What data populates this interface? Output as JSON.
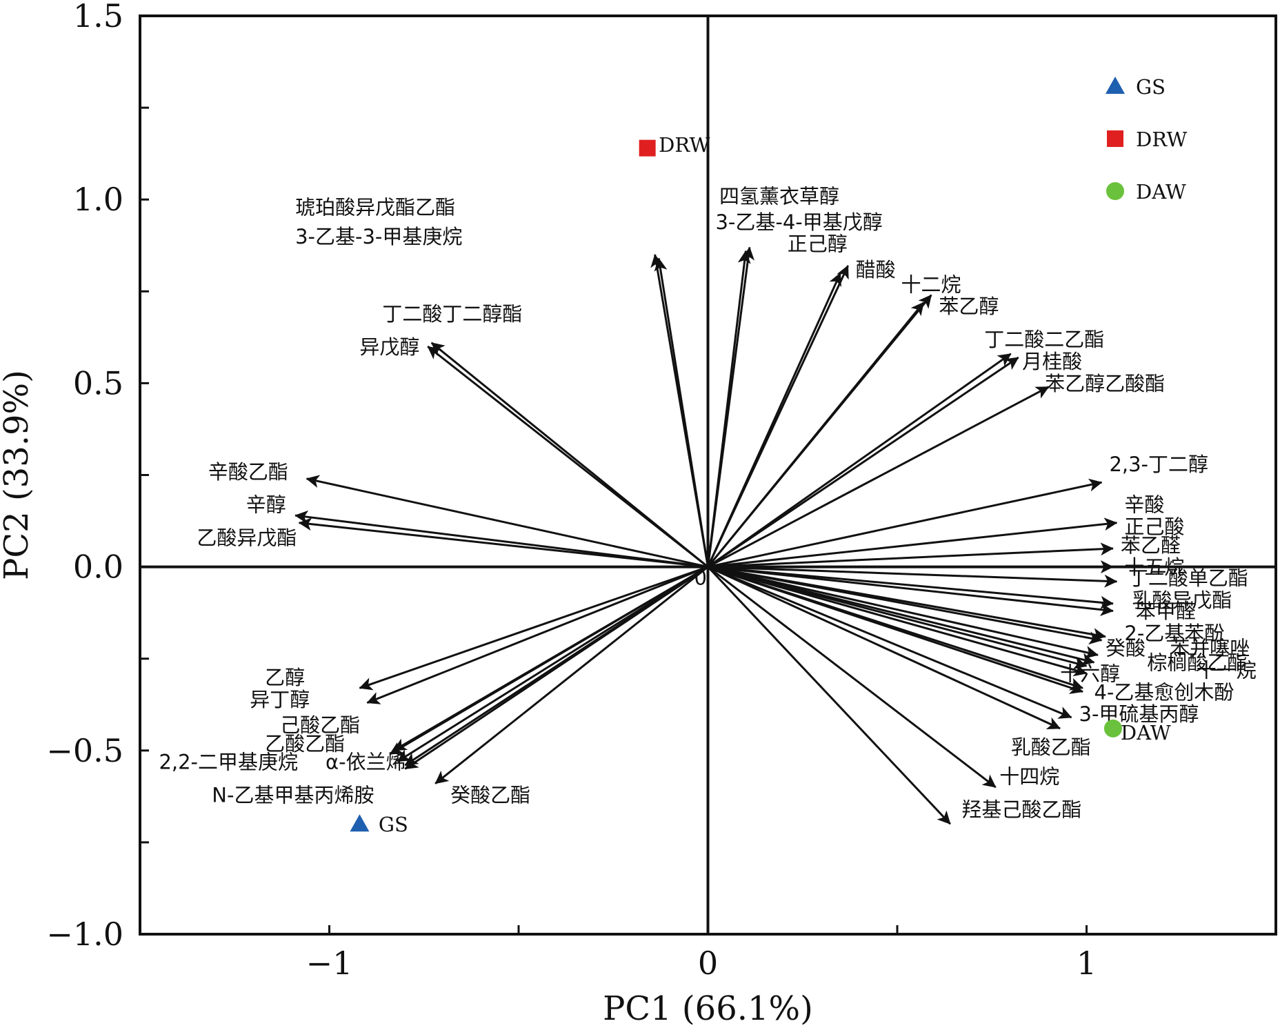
{
  "chart_data": {
    "type": "scatter",
    "subtype": "pca-biplot",
    "xlabel": "PC1 (66.1%)",
    "ylabel": "PC2 (33.9%)",
    "xlim": [
      -1.5,
      1.5
    ],
    "ylim": [
      -1.0,
      1.5
    ],
    "x_ticks": [
      -1,
      0,
      1
    ],
    "x_tick_labels": [
      "−1",
      "0",
      "1"
    ],
    "y_ticks": [
      -1.0,
      -0.5,
      0.0,
      0.5,
      1.0,
      1.5
    ],
    "y_tick_labels": [
      "−1.0",
      "−0.5",
      "0.0",
      "0.5",
      "1.0",
      "1.5"
    ],
    "origin_label": "0",
    "grid": false,
    "legend_position": "top-right",
    "colors": {
      "GS": "#1f5fb0",
      "DRW": "#e02020",
      "DAW": "#6ac23c",
      "arrow": "#111111"
    },
    "samples": [
      {
        "name": "GS",
        "marker": "triangle",
        "x": -0.92,
        "y": -0.7
      },
      {
        "name": "DRW",
        "marker": "square",
        "x": -0.16,
        "y": 1.14
      },
      {
        "name": "DAW",
        "marker": "circle",
        "x": 1.07,
        "y": -0.44
      }
    ],
    "loadings": [
      {
        "name": "琥珀酸异戊酯乙酯",
        "x": -0.14,
        "y": 0.85
      },
      {
        "name": "3-乙基-3-甲基庚烷",
        "x": -0.13,
        "y": 0.84
      },
      {
        "name": "四氢薰衣草醇",
        "x": 0.11,
        "y": 0.87
      },
      {
        "name": "3-乙基-4-甲基戊醇",
        "x": 0.1,
        "y": 0.86
      },
      {
        "name": "正己醇",
        "x": 0.37,
        "y": 0.82
      },
      {
        "name": "醋酸",
        "x": 0.35,
        "y": 0.8
      },
      {
        "name": "十二烷",
        "x": 0.59,
        "y": 0.74
      },
      {
        "name": "苯乙醇",
        "x": 0.57,
        "y": 0.72
      },
      {
        "name": "丁二酸二乙酯",
        "x": 0.8,
        "y": 0.58
      },
      {
        "name": "月桂酸",
        "x": 0.82,
        "y": 0.57
      },
      {
        "name": "苯乙醇乙酸酯",
        "x": 0.9,
        "y": 0.49
      },
      {
        "name": "丁二酸丁二醇酯",
        "x": -0.73,
        "y": 0.61
      },
      {
        "name": "异戊醇",
        "x": -0.74,
        "y": 0.6
      },
      {
        "name": "辛酸乙酯",
        "x": -1.06,
        "y": 0.24
      },
      {
        "name": "辛醇",
        "x": -1.09,
        "y": 0.14
      },
      {
        "name": "乙酸异戊酯",
        "x": -1.08,
        "y": 0.12
      },
      {
        "name": "2,3-丁二醇",
        "x": 1.04,
        "y": 0.23
      },
      {
        "name": "辛酸",
        "x": 1.08,
        "y": 0.12
      },
      {
        "name": "正己酸",
        "x": 1.07,
        "y": 0.05
      },
      {
        "name": "苯乙醛",
        "x": 1.07,
        "y": 0.0
      },
      {
        "name": "十五烷",
        "x": 1.08,
        "y": -0.04
      },
      {
        "name": "丁二酸单乙酯",
        "x": 1.07,
        "y": -0.1
      },
      {
        "name": "乳酸异戊酯",
        "x": 1.07,
        "y": -0.12
      },
      {
        "name": "苯甲醛",
        "x": 1.05,
        "y": -0.19
      },
      {
        "name": "2-乙基苯酚",
        "x": 1.04,
        "y": -0.2
      },
      {
        "name": "癸酸",
        "x": 1.03,
        "y": -0.24
      },
      {
        "name": "苯并噻唑",
        "x": 1.02,
        "y": -0.26
      },
      {
        "name": "棕榈酸乙酯",
        "x": 1.0,
        "y": -0.27
      },
      {
        "name": "十一烷",
        "x": 1.0,
        "y": -0.29
      },
      {
        "name": "十六醇",
        "x": 0.99,
        "y": -0.33
      },
      {
        "name": "4-乙基愈创木酚",
        "x": 0.99,
        "y": -0.34
      },
      {
        "name": "3-甲硫基丙醇",
        "x": 0.96,
        "y": -0.41
      },
      {
        "name": "乳酸乙酯",
        "x": 0.93,
        "y": -0.44
      },
      {
        "name": "十四烷",
        "x": 0.76,
        "y": -0.6
      },
      {
        "name": "羟基己酸乙酯",
        "x": 0.64,
        "y": -0.7
      },
      {
        "name": "乙醇",
        "x": -0.92,
        "y": -0.33
      },
      {
        "name": "异丁醇",
        "x": -0.9,
        "y": -0.37
      },
      {
        "name": "己酸乙酯",
        "x": -0.83,
        "y": -0.5
      },
      {
        "name": "乙酸乙酯",
        "x": -0.84,
        "y": -0.51
      },
      {
        "name": "2,2-二甲基庚烷",
        "x": -0.82,
        "y": -0.53
      },
      {
        "name": "α-依兰烯",
        "x": -0.8,
        "y": -0.54
      },
      {
        "name": "N-乙基甲基丙烯胺",
        "x": -0.8,
        "y": -0.55
      },
      {
        "name": "癸酸乙酯",
        "x": -0.72,
        "y": -0.59
      }
    ],
    "label_positions": [
      [
        -1.09,
        0.96
      ],
      [
        -1.09,
        0.88
      ],
      [
        0.03,
        0.99
      ],
      [
        0.02,
        0.92
      ],
      [
        0.21,
        0.86
      ],
      [
        0.39,
        0.79
      ],
      [
        0.51,
        0.75
      ],
      [
        0.61,
        0.69
      ],
      [
        0.73,
        0.6
      ],
      [
        0.83,
        0.54
      ],
      [
        0.89,
        0.48
      ],
      [
        -0.86,
        0.67
      ],
      [
        -0.92,
        0.58
      ],
      [
        -1.32,
        0.24
      ],
      [
        -1.22,
        0.15
      ],
      [
        -1.35,
        0.06
      ],
      [
        1.06,
        0.26
      ],
      [
        1.1,
        0.15
      ],
      [
        1.1,
        0.09
      ],
      [
        1.09,
        0.04
      ],
      [
        1.1,
        -0.02
      ],
      [
        1.11,
        -0.05
      ],
      [
        1.12,
        -0.11
      ],
      [
        1.13,
        -0.14
      ],
      [
        1.1,
        -0.2
      ],
      [
        1.05,
        -0.24
      ],
      [
        1.22,
        -0.24
      ],
      [
        1.16,
        -0.28
      ],
      [
        1.29,
        -0.3
      ],
      [
        0.93,
        -0.31
      ],
      [
        1.02,
        -0.36
      ],
      [
        0.98,
        -0.42
      ],
      [
        0.8,
        -0.51
      ],
      [
        0.77,
        -0.59
      ],
      [
        0.67,
        -0.68
      ],
      [
        -1.17,
        -0.32
      ],
      [
        -1.21,
        -0.38
      ],
      [
        -1.13,
        -0.45
      ],
      [
        -1.17,
        -0.5
      ],
      [
        -1.45,
        -0.55
      ],
      [
        -1.01,
        -0.55
      ],
      [
        -1.31,
        -0.64
      ],
      [
        -0.68,
        -0.64
      ]
    ],
    "sample_label_positions": [
      [
        -0.87,
        -0.72
      ],
      [
        -0.13,
        1.13
      ],
      [
        1.09,
        -0.47
      ]
    ]
  }
}
